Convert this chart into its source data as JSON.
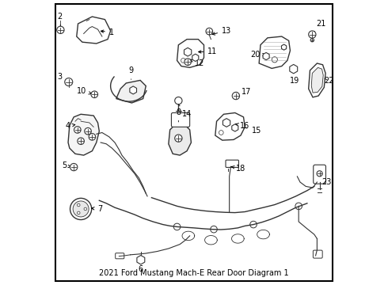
{
  "title": "2021 Ford Mustang Mach-E Rear Door Diagram 1",
  "background_color": "#ffffff",
  "border_color": "#000000",
  "fig_width": 4.9,
  "fig_height": 3.6,
  "dpi": 100,
  "font_size_labels": 7,
  "font_size_title": 7,
  "label_font": "DejaVu Sans",
  "line_color": "#222222",
  "part_edge_color": "#333333",
  "part_face_color": "#ffffff"
}
